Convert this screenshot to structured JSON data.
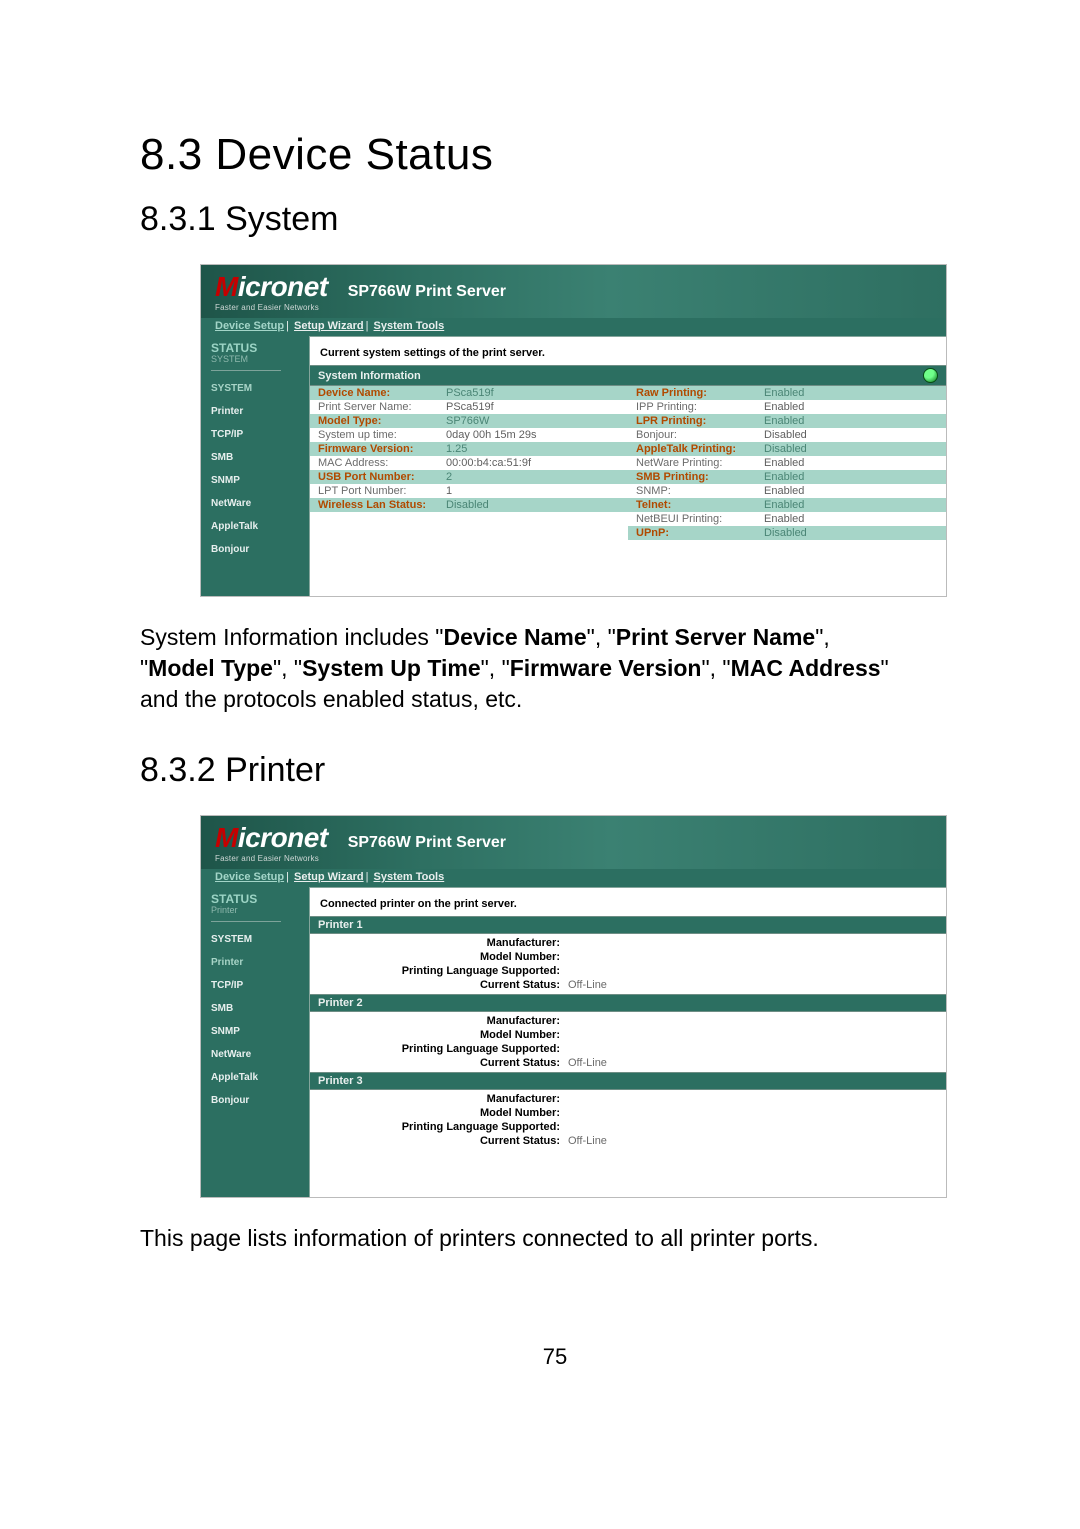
{
  "doc": {
    "section_heading": "8.3    Device Status",
    "sub1_heading": "8.3.1    System",
    "sub2_heading": "8.3.2    Printer",
    "p1_prefix": "System Information includes \"",
    "b1": "Device Name",
    "p1_m1": "\", \"",
    "b2": "Print Server Name",
    "p1_m2": "\", \"",
    "b3": "Model Type",
    "p1_m3": "\", \"",
    "b4": "System Up Time",
    "p1_m4": "\", \"",
    "b5": "Firmware Version",
    "p1_m5": "\", \"",
    "b6": "MAC Address",
    "p1_suffix": "\" and the protocols enabled status, etc.",
    "p2": "This page lists information of printers connected to all printer ports.",
    "page_number": "75"
  },
  "screenshot": {
    "brand": "Micronet",
    "brand_sub": "Faster and Easier Networks",
    "title": "SP766W Print Server",
    "topnav": {
      "device_setup": "Device Setup",
      "setup_wizard": "Setup Wizard",
      "system_tools": "System Tools"
    },
    "status_label": "STATUS",
    "colors": {
      "teal_bg": "#2c6f61",
      "strip_alt": "#a6d5c8",
      "active_link": "#a8d4c7",
      "inactive_link": "#e7efee",
      "highlight_lbl": "#b14a00",
      "muted_lbl": "#6b6b6b",
      "teal_val": "#4a8575"
    }
  },
  "system_ss": {
    "sidebar_sub": "SYSTEM",
    "sidebar": [
      {
        "label": "SYSTEM",
        "active": true
      },
      {
        "label": "Printer",
        "active": false
      },
      {
        "label": "TCP/IP",
        "active": false
      },
      {
        "label": "SMB",
        "active": false
      },
      {
        "label": "SNMP",
        "active": false
      },
      {
        "label": "NetWare",
        "active": false
      },
      {
        "label": "AppleTalk",
        "active": false
      },
      {
        "label": "Bonjour",
        "active": false
      }
    ],
    "content_title": "Current system settings of the print server.",
    "table_header": "System Information",
    "left": [
      {
        "k": "Device Name:",
        "v": "PSca519f",
        "strip": 1,
        "hl": true
      },
      {
        "k": "Print Server Name:",
        "v": "PSca519f",
        "strip": 0,
        "hl": false
      },
      {
        "k": "Model Type:",
        "v": "SP766W",
        "strip": 1,
        "hl": true
      },
      {
        "k": "System up time:",
        "v": "0day 00h 15m 29s",
        "strip": 0,
        "hl": false
      },
      {
        "k": "Firmware Version:",
        "v": "1.25",
        "strip": 1,
        "hl": true
      },
      {
        "k": "MAC Address:",
        "v": "00:00:b4:ca:51:9f",
        "strip": 0,
        "hl": false
      },
      {
        "k": "USB Port Number:",
        "v": "2",
        "strip": 1,
        "hl": true
      },
      {
        "k": "LPT Port Number:",
        "v": "1",
        "strip": 0,
        "hl": false
      },
      {
        "k": "Wireless Lan Status:",
        "v": "Disabled",
        "strip": 1,
        "hl": true
      }
    ],
    "right": [
      {
        "k": "Raw Printing:",
        "v": "Enabled",
        "strip": 1,
        "hl": true
      },
      {
        "k": "IPP Printing:",
        "v": "Enabled",
        "strip": 0,
        "hl": false
      },
      {
        "k": "LPR Printing:",
        "v": "Enabled",
        "strip": 1,
        "hl": true
      },
      {
        "k": "Bonjour:",
        "v": "Disabled",
        "strip": 0,
        "hl": false
      },
      {
        "k": "AppleTalk Printing:",
        "v": "Disabled",
        "strip": 1,
        "hl": true
      },
      {
        "k": "NetWare Printing:",
        "v": "Enabled",
        "strip": 0,
        "hl": false
      },
      {
        "k": "SMB Printing:",
        "v": "Enabled",
        "strip": 1,
        "hl": true
      },
      {
        "k": "SNMP:",
        "v": "Enabled",
        "strip": 0,
        "hl": false
      },
      {
        "k": "Telnet:",
        "v": "Enabled",
        "strip": 1,
        "hl": true
      },
      {
        "k": "NetBEUI Printing:",
        "v": "Enabled",
        "strip": 0,
        "hl": false
      },
      {
        "k": "UPnP:",
        "v": "Disabled",
        "strip": 1,
        "hl": true
      }
    ]
  },
  "printer_ss": {
    "sidebar_sub": "Printer",
    "sidebar": [
      {
        "label": "SYSTEM",
        "active": false
      },
      {
        "label": "Printer",
        "active": true
      },
      {
        "label": "TCP/IP",
        "active": false
      },
      {
        "label": "SMB",
        "active": false
      },
      {
        "label": "SNMP",
        "active": false
      },
      {
        "label": "NetWare",
        "active": false
      },
      {
        "label": "AppleTalk",
        "active": false
      },
      {
        "label": "Bonjour",
        "active": false
      }
    ],
    "content_title": "Connected printer on the print server.",
    "panels": [
      {
        "hdr": "Printer 1",
        "fields": [
          {
            "k": "Manufacturer:",
            "v": ""
          },
          {
            "k": "Model Number:",
            "v": ""
          },
          {
            "k": "Printing Language Supported:",
            "v": ""
          },
          {
            "k": "Current Status:",
            "v": "Off-Line"
          }
        ]
      },
      {
        "hdr": "Printer 2",
        "fields": [
          {
            "k": "Manufacturer:",
            "v": ""
          },
          {
            "k": "Model Number:",
            "v": ""
          },
          {
            "k": "Printing Language Supported:",
            "v": ""
          },
          {
            "k": "Current Status:",
            "v": "Off-Line"
          }
        ]
      },
      {
        "hdr": "Printer 3",
        "fields": [
          {
            "k": "Manufacturer:",
            "v": ""
          },
          {
            "k": "Model Number:",
            "v": ""
          },
          {
            "k": "Printing Language Supported:",
            "v": ""
          },
          {
            "k": "Current Status:",
            "v": "Off-Line"
          }
        ]
      }
    ]
  }
}
